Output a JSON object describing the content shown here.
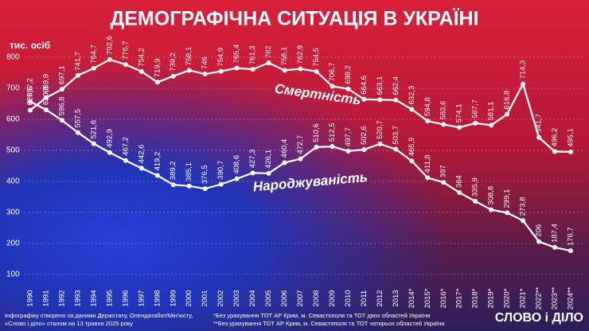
{
  "chart_data": {
    "type": "line",
    "title": "ДЕМОГРАФІЧНА СИТУАЦІЯ В УКРАЇНІ",
    "y_label": "тис. осіб",
    "categories": [
      "1990",
      "1991",
      "1992",
      "1993",
      "1994",
      "1995",
      "1996",
      "1997",
      "1998",
      "1999",
      "2000",
      "2001",
      "2002",
      "2003",
      "2004",
      "2005",
      "2006",
      "2007",
      "2008",
      "2009",
      "2010",
      "2011",
      "2012",
      "2013",
      "2014*",
      "2015*",
      "2016*",
      "2017*",
      "2018*",
      "2019*",
      "2020*",
      "2021*",
      "2022**",
      "2023**",
      "2024**"
    ],
    "series": [
      {
        "name": "Смертність",
        "color": "#ffffff",
        "values": [
          629.6,
          669.9,
          697.1,
          741.7,
          764.7,
          792.6,
          776.7,
          754.2,
          719.9,
          739.2,
          758.1,
          746,
          754.9,
          765.4,
          761.3,
          782,
          758.1,
          762.9,
          754.5,
          706.7,
          698.2,
          664.6,
          663.1,
          662.4,
          632.3,
          594.8,
          583.6,
          574.1,
          587.7,
          581.1,
          616.8,
          714.3,
          541.7,
          496.2,
          495.1
        ],
        "value_labels": [
          "629,6",
          "669,9",
          "697,1",
          "741,7",
          "764,7",
          "792,6",
          "776,7",
          "754,2",
          "719,9",
          "739,2",
          "758,1",
          "746",
          "754,9",
          "765,4",
          "761,3",
          "782",
          "758,1",
          "762,9",
          "754,5",
          "706,7",
          "698,2",
          "664,6",
          "663,1",
          "662,4",
          "632,3",
          "594,8",
          "583,6",
          "574,1",
          "587,7",
          "581,1",
          "616,8",
          "714,3",
          "541,7",
          "496,2",
          "495,1"
        ]
      },
      {
        "name": "Народжуваність",
        "color": "#ffffff",
        "values": [
          657.2,
          630.8,
          596.8,
          557.5,
          521.6,
          492.9,
          467.2,
          442.6,
          419.2,
          389.2,
          385.1,
          376.5,
          390.7,
          408.6,
          427.3,
          426.1,
          460.4,
          472.7,
          510.6,
          512.5,
          497.7,
          502.6,
          520.7,
          503.7,
          465.9,
          411.8,
          397,
          364,
          335.9,
          308.8,
          299.1,
          273.8,
          206,
          187.4,
          176.7
        ],
        "value_labels": [
          "657,2",
          "630,8",
          "596,8",
          "557,5",
          "521,6",
          "492,9",
          "467,2",
          "442,6",
          "419,2",
          "389,2",
          "385,1",
          "376,5",
          "390,7",
          "408,6",
          "427,3",
          "426,1",
          "460,4",
          "472,7",
          "510,6",
          "512,5",
          "497,7",
          "502,6",
          "520,7",
          "503,7",
          "465,9",
          "411,8",
          "397",
          "364",
          "335,9",
          "308,8",
          "299,1",
          "273,8",
          "206",
          "187,4",
          "176,7"
        ]
      }
    ],
    "ylim": [
      100,
      800
    ],
    "yticks": [
      100,
      200,
      300,
      400,
      500,
      600,
      700,
      800
    ],
    "grid": true
  },
  "footer": {
    "source": [
      "Інфографіку створено за даними Держстату, Опендатабот/Мін'юсту,",
      "«Слово і діло» станом на 13 травня 2025 року"
    ],
    "notes": [
      "*Без урахування ТОТ АР Крим, м. Севастополя та ТОТ двох областей України",
      "**Без урахування ТОТ АР Крим, м. Севастополя та ТОТ чотирьох областей України"
    ],
    "logo": "СЛОВО і ДІЛО"
  }
}
